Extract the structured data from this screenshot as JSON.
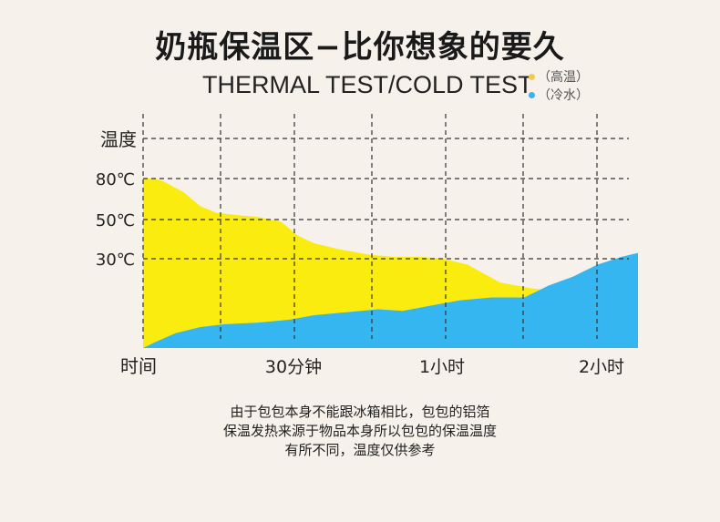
{
  "title": "奶瓶保温区−比你想象的要久",
  "subtitle": "THERMAL  TEST/COLD TEST",
  "legend": {
    "hot": {
      "label": "（高温）",
      "color": "#f6c94a"
    },
    "cold": {
      "label": "（冷水）",
      "color": "#35b4ee"
    }
  },
  "chart_data": {
    "type": "area",
    "ylabel": "温度",
    "xlabel": "时间",
    "y_ticks": [
      {
        "label": "80℃",
        "value": 80
      },
      {
        "label": "50℃",
        "value": 50
      },
      {
        "label": "30℃",
        "value": 30
      }
    ],
    "x_ticks": [
      {
        "label": "30分钟",
        "value": 30
      },
      {
        "label": "1小时",
        "value": 60
      },
      {
        "label": "2小时",
        "value": 120
      }
    ],
    "xlim": [
      0,
      122
    ],
    "ylim": [
      0,
      100
    ],
    "grid": true,
    "series": [
      {
        "name": "高温",
        "color": "#fbec0f",
        "x": [
          0,
          3,
          5,
          10,
          14,
          18,
          24,
          28,
          34,
          38,
          42,
          48,
          56,
          62,
          68,
          74,
          80,
          88,
          96,
          104,
          110,
          120
        ],
        "y": [
          80,
          80,
          78,
          70,
          60,
          55,
          53,
          52,
          49,
          42,
          38,
          35,
          32,
          31,
          31,
          30,
          28,
          22,
          20,
          19,
          17,
          0
        ]
      },
      {
        "name": "冷水",
        "color": "#36b6f0",
        "x": [
          0,
          3,
          8,
          14,
          20,
          28,
          36,
          42,
          50,
          58,
          64,
          70,
          78,
          86,
          94,
          100,
          106,
          112,
          118,
          122
        ],
        "y": [
          0,
          2,
          5,
          7,
          8,
          8.5,
          9.5,
          11,
          12,
          13,
          12.5,
          14,
          16,
          17,
          17,
          21,
          24,
          28,
          31,
          33
        ]
      }
    ]
  },
  "caption": {
    "line1": "由于包包本身不能跟冰箱相比，包包的铝箔",
    "line2": "保温发热来源于物品本身所以包包的保温温度",
    "line3": "有所不同，温度仅供参考"
  }
}
